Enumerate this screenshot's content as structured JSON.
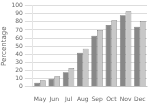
{
  "chart_data": {
    "type": "bar",
    "ylabel": "Percentage",
    "categories": [
      "May",
      "Jun",
      "Jul",
      "Aug",
      "Sep",
      "Oct",
      "Nov",
      "Dec"
    ],
    "series": [
      {
        "color": "#888888",
        "values": [
          5,
          10,
          18,
          42,
          63,
          76,
          88,
          74
        ]
      },
      {
        "color": "#c8c8c8",
        "values": [
          8,
          13,
          23,
          47,
          70,
          82,
          93,
          81
        ]
      }
    ],
    "ylim": [
      0,
      100
    ],
    "yticks": [
      0,
      10,
      20,
      30,
      40,
      50,
      60,
      70,
      80,
      90,
      100
    ],
    "grid": true
  }
}
